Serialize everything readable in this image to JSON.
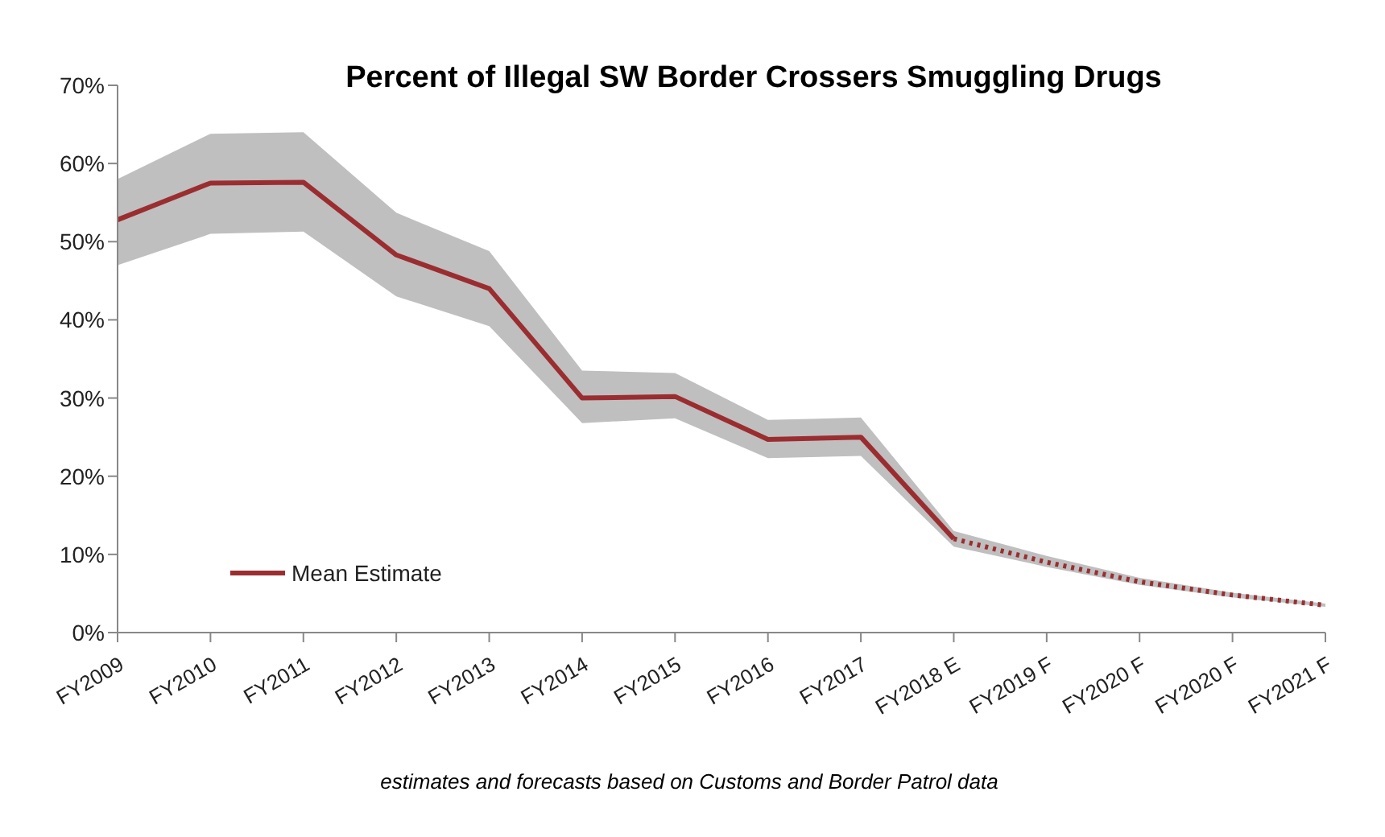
{
  "chart_data": {
    "type": "line",
    "title": "Percent of Illegal SW Border Crossers Smuggling Drugs",
    "categories": [
      "FY2009",
      "FY2010",
      "FY2011",
      "FY2012",
      "FY2013",
      "FY2014",
      "FY2015",
      "FY2016",
      "FY2017",
      "FY2018 E",
      "FY2019 F",
      "FY2020 F",
      "FY2020 F",
      "FY2021 F"
    ],
    "series": [
      {
        "name": "Mean Estimate",
        "color": "#9b2d30",
        "line_style": "solid",
        "values": [
          52.8,
          57.5,
          57.6,
          48.3,
          44,
          30,
          30.2,
          24.7,
          25,
          12,
          null,
          null,
          null,
          null
        ],
        "lower": [
          47,
          51,
          51.3,
          43,
          39.2,
          26.8,
          27.4,
          22.3,
          22.6,
          11,
          8.4,
          6.1,
          4.5,
          3.3
        ],
        "upper": [
          58,
          63.8,
          64,
          53.7,
          48.8,
          33.5,
          33.2,
          27.2,
          27.5,
          13,
          9.8,
          7,
          5.1,
          3.7
        ]
      },
      {
        "color": "#9b2d30",
        "line_style": "dotted",
        "values": [
          null,
          null,
          null,
          null,
          null,
          null,
          null,
          null,
          null,
          12,
          9,
          6.5,
          4.8,
          3.5
        ]
      }
    ],
    "ylim": [
      0,
      70
    ],
    "yticks": [
      {
        "value": 0,
        "label": "0%"
      },
      {
        "value": 10,
        "label": "10%"
      },
      {
        "value": 20,
        "label": "20%"
      },
      {
        "value": 30,
        "label": "30%"
      },
      {
        "value": 40,
        "label": "40%"
      },
      {
        "value": 50,
        "label": "50%"
      },
      {
        "value": 60,
        "label": "60%"
      },
      {
        "value": 70,
        "label": "70%"
      }
    ],
    "grid": false,
    "legend": "bottom left",
    "marker": "none",
    "annotations": [
      "estimates and forecasts based on Customs and Border Patrol data"
    ]
  }
}
